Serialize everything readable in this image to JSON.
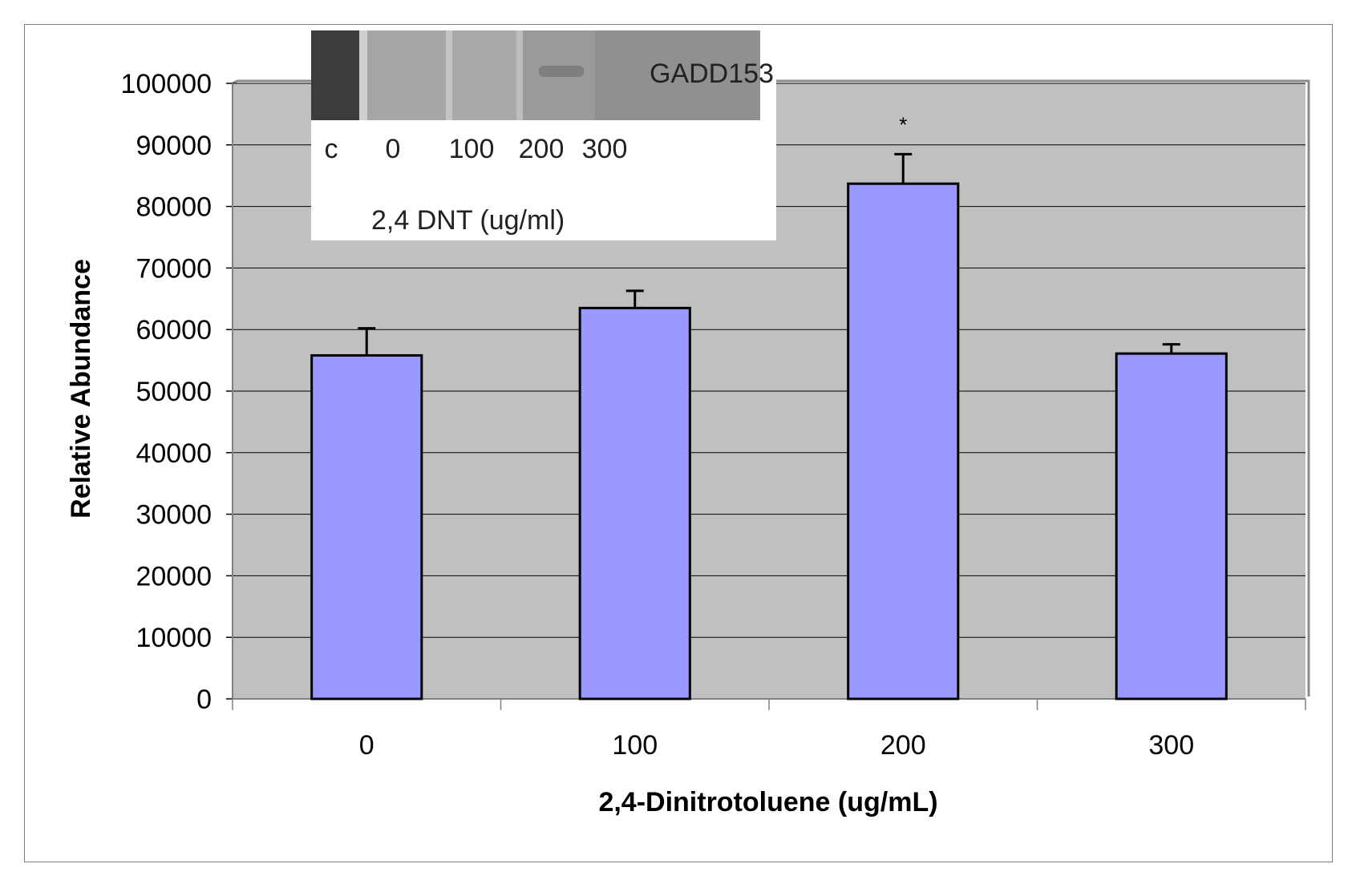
{
  "chart_data": {
    "type": "bar",
    "categories": [
      "0",
      "100",
      "200",
      "300"
    ],
    "values": [
      55800,
      63500,
      83700,
      56100
    ],
    "error_upper": [
      60200,
      66300,
      88500,
      57600
    ],
    "annotations": [
      "",
      "",
      "*",
      ""
    ],
    "xlabel": "2,4-Dinitrotoluene (ug/mL)",
    "ylabel": "Relative Abundance",
    "ylim": [
      0,
      100000
    ],
    "yticks": [
      0,
      10000,
      20000,
      30000,
      40000,
      50000,
      60000,
      70000,
      80000,
      90000,
      100000
    ],
    "grid": true,
    "bar_color": "#9999ff",
    "plot_background": "#c0c0c0"
  },
  "inset": {
    "band_label": "GADD153",
    "lane_labels": [
      "c",
      "0",
      "100",
      "200",
      "300"
    ],
    "caption": "2,4 DNT (ug/ml)"
  }
}
